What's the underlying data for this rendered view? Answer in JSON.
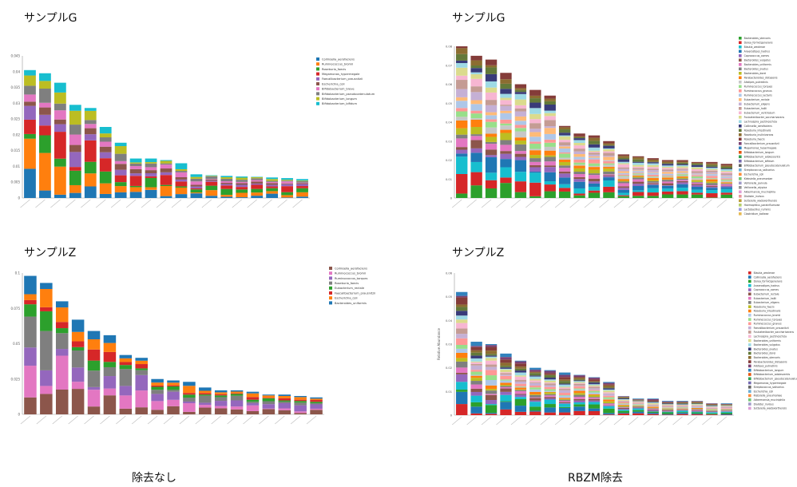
{
  "panels": [
    {
      "title": "サンプルG"
    },
    {
      "title": "サンプルG"
    },
    {
      "title": "サンプルZ"
    },
    {
      "title": "サンプルZ"
    }
  ],
  "captions": {
    "left": "除去なし",
    "right": "RBZM除去"
  },
  "chart_data": [
    {
      "type": "bar",
      "stacked": true,
      "ylim": [
        0,
        0.045
      ],
      "yticks": [
        "0",
        "0.005",
        "0.01",
        "0.015",
        "0.02",
        "0.025",
        "0.03",
        "0.035",
        "0.04",
        "0.045"
      ],
      "totals": [
        0.0405,
        0.0395,
        0.0365,
        0.0295,
        0.0285,
        0.0225,
        0.0175,
        0.0125,
        0.0125,
        0.012,
        0.011,
        0.0075,
        0.0072,
        0.007,
        0.0068,
        0.0067,
        0.0065,
        0.0063,
        0.006
      ],
      "legend": [
        "Collinsella_aerofaciens",
        "Ruminococcus_bromii",
        "Roseburia_faecis",
        "Megamonas_hypermegale",
        "Faecalibacterium_prausnitzii",
        "Escherichia_coli",
        "Bifidobacterium_breve",
        "Bifidobacterium_pseudocatenulatum",
        "Bifidobacterium_longum",
        "Bifidobacterium_bifidum"
      ],
      "colors": [
        "#1f77b4",
        "#ff7f0e",
        "#2ca02c",
        "#d62728",
        "#9467bd",
        "#8c564b",
        "#e377c2",
        "#7f7f7f",
        "#bcbd22",
        "#17becf"
      ]
    },
    {
      "type": "bar",
      "stacked": true,
      "ylim": [
        0,
        0.08
      ],
      "yticks": [
        "0",
        "0.01",
        "0.02",
        "0.03",
        "0.04",
        "0.05",
        "0.06",
        "0.07",
        "0.08"
      ],
      "totals": [
        0.08,
        0.075,
        0.073,
        0.066,
        0.06,
        0.057,
        0.054,
        0.038,
        0.034,
        0.033,
        0.03,
        0.023,
        0.022,
        0.021,
        0.02,
        0.02,
        0.019,
        0.019,
        0.018
      ],
      "legend": [
        "Bacteroides_stercoris",
        "Dorea_formicigenerans",
        "Blautia_wexlerae",
        "Anaerostipes_hadrus",
        "Coprococcus_comes",
        "Bacteroides_vulgatus",
        "Bacteroides_uniformis",
        "Bacteroides_ovatus",
        "Bacteroides_dorei",
        "Parabacteroides_distasonis",
        "Alistipes_putredinis",
        "Ruminococcus_torques",
        "Ruminococcus_gnavus",
        "Ruminococcus_lactaris",
        "Eubacterium_rectale",
        "Eubacterium_eligens",
        "Eubacterium_hallii",
        "Eubacterium_ventriosum",
        "Fusicatenibacter_saccharivorans",
        "Lachnospira_pectinoschiza",
        "Collinsella_aerofaciens",
        "Roseburia_intestinalis",
        "Roseburia_inulinivorans",
        "Roseburia_faecis",
        "Faecalibacterium_prausnitzii",
        "Megamonas_hypermegale",
        "Bifidobacterium_longum",
        "Bifidobacterium_adolescentis",
        "Bifidobacterium_bifidum",
        "Bifidobacterium_pseudocatenulatum",
        "Streptococcus_salivarius",
        "Escherichia_coli",
        "Klebsiella_pneumoniae",
        "Veillonella_parvula",
        "Veillonella_atypica",
        "Akkermansia_muciniphila",
        "Dialister_invisus",
        "Sutterella_wadsworthensis",
        "Haemophilus_parainfluenzae",
        "Lactobacillus_ruminis",
        "Clostridium_bolteae"
      ],
      "colors": [
        "#2ca02c",
        "#d62728",
        "#17becf",
        "#1f77b4",
        "#9467bd",
        "#8c564b",
        "#e377c2",
        "#7f7f7f",
        "#bcbd22",
        "#ff7f0e",
        "#c7c7c7",
        "#98df8a",
        "#ff9896",
        "#aec7e8",
        "#ffbb78",
        "#c5b0d5",
        "#c49c94",
        "#f7b6d2",
        "#dbdb8d",
        "#9edae5",
        "#393b79",
        "#637939",
        "#8c6d31",
        "#843c39",
        "#7b4173",
        "#3182bd",
        "#e6550d",
        "#31a354",
        "#756bb1",
        "#636363",
        "#6baed6",
        "#fd8d3c",
        "#74c476",
        "#9e9ac8",
        "#969696",
        "#de9ed6",
        "#e7969c",
        "#bd9e39",
        "#b5cf6b",
        "#9c9ede",
        "#e7ba52"
      ]
    },
    {
      "type": "bar",
      "stacked": true,
      "ylim": [
        0,
        0.1
      ],
      "yticks": [
        "0",
        "0.025",
        "0.05",
        "0.075",
        "0.1"
      ],
      "totals": [
        0.098,
        0.093,
        0.08,
        0.067,
        0.059,
        0.056,
        0.042,
        0.04,
        0.025,
        0.024,
        0.023,
        0.019,
        0.017,
        0.017,
        0.016,
        0.014,
        0.014,
        0.013,
        0.012
      ],
      "legend": [
        "Collinsella_aerofaciens",
        "Ruminococcus_bromii",
        "Ruminococcus_torques",
        "Roseburia_faecis",
        "Eubacterium_rectale",
        "Faecalibacterium_prausnitzii",
        "Escherichia_coli",
        "Bacteroides_uniformis"
      ],
      "colors": [
        "#8c564b",
        "#e377c2",
        "#9467bd",
        "#7f7f7f",
        "#2ca02c",
        "#d62728",
        "#ff7f0e",
        "#1f77b4"
      ]
    },
    {
      "type": "bar",
      "stacked": true,
      "ylim": [
        0,
        0.06
      ],
      "yticks": [
        "0",
        "0.01",
        "0.02",
        "0.03",
        "0.04",
        "0.05",
        "0.06"
      ],
      "ylabel": "Relative Abundance",
      "totals": [
        0.052,
        0.031,
        0.03,
        0.026,
        0.023,
        0.02,
        0.019,
        0.018,
        0.017,
        0.016,
        0.014,
        0.008,
        0.007,
        0.007,
        0.006,
        0.006,
        0.006,
        0.005,
        0.005
      ],
      "legend": [
        "Blautia_wexlerae",
        "Collinsella_aerofaciens",
        "Dorea_formicigenerans",
        "Anaerostipes_hadrus",
        "Coprococcus_comes",
        "Eubacterium_rectale",
        "Eubacterium_hallii",
        "Eubacterium_eligens",
        "Roseburia_faecis",
        "Roseburia_intestinalis",
        "Ruminococcus_bromii",
        "Ruminococcus_torques",
        "Ruminococcus_gnavus",
        "Faecalibacterium_prausnitzii",
        "Fusicatenibacter_saccharivorans",
        "Lachnospira_pectinoschiza",
        "Bacteroides_uniformis",
        "Bacteroides_vulgatus",
        "Bacteroides_ovatus",
        "Bacteroides_dorei",
        "Bacteroides_stercoris",
        "Parabacteroides_distasonis",
        "Alistipes_putredinis",
        "Bifidobacterium_longum",
        "Bifidobacterium_adolescentis",
        "Bifidobacterium_pseudocatenulatum",
        "Megamonas_hypermegale",
        "Streptococcus_salivarius",
        "Escherichia_coli",
        "Klebsiella_pneumoniae",
        "Akkermansia_muciniphila",
        "Dialister_invisus",
        "Sutterella_wadsworthensis"
      ],
      "colors": [
        "#d62728",
        "#1f77b4",
        "#2ca02c",
        "#17becf",
        "#9467bd",
        "#8c564b",
        "#e377c2",
        "#7f7f7f",
        "#bcbd22",
        "#ff7f0e",
        "#aec7e8",
        "#98df8a",
        "#ff9896",
        "#c5b0d5",
        "#c49c94",
        "#f7b6d2",
        "#dbdb8d",
        "#9edae5",
        "#393b79",
        "#637939",
        "#8c6d31",
        "#843c39",
        "#7b4173",
        "#3182bd",
        "#e6550d",
        "#31a354",
        "#756bb1",
        "#636363",
        "#6baed6",
        "#fd8d3c",
        "#74c476",
        "#9e9ac8",
        "#de9ed6"
      ]
    }
  ]
}
